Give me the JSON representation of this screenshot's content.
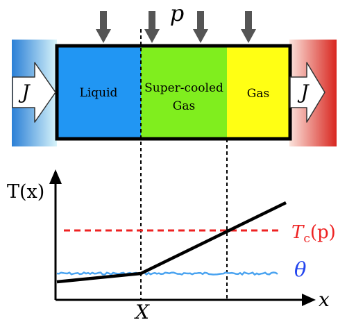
{
  "pressure_label": "p",
  "flux_label": "J",
  "phases": [
    {
      "label": "Liquid",
      "color": "#2196f3"
    },
    {
      "label_line1": "Super-cooled",
      "label_line2": "Gas",
      "color": "#80ee1e"
    },
    {
      "label": "Gas",
      "color": "#ffff14"
    }
  ],
  "graph": {
    "y_axis_label": "T(x)",
    "x_axis_label": "x",
    "interface_label": "X",
    "critical_temp_label": "T",
    "critical_temp_subscript": "c",
    "critical_temp_arg": "(p)",
    "bath_label": "θ",
    "colors": {
      "critical_line": "#ee2222",
      "bath_line": "#4aa3f0",
      "bath_label": "#2244ee"
    }
  }
}
